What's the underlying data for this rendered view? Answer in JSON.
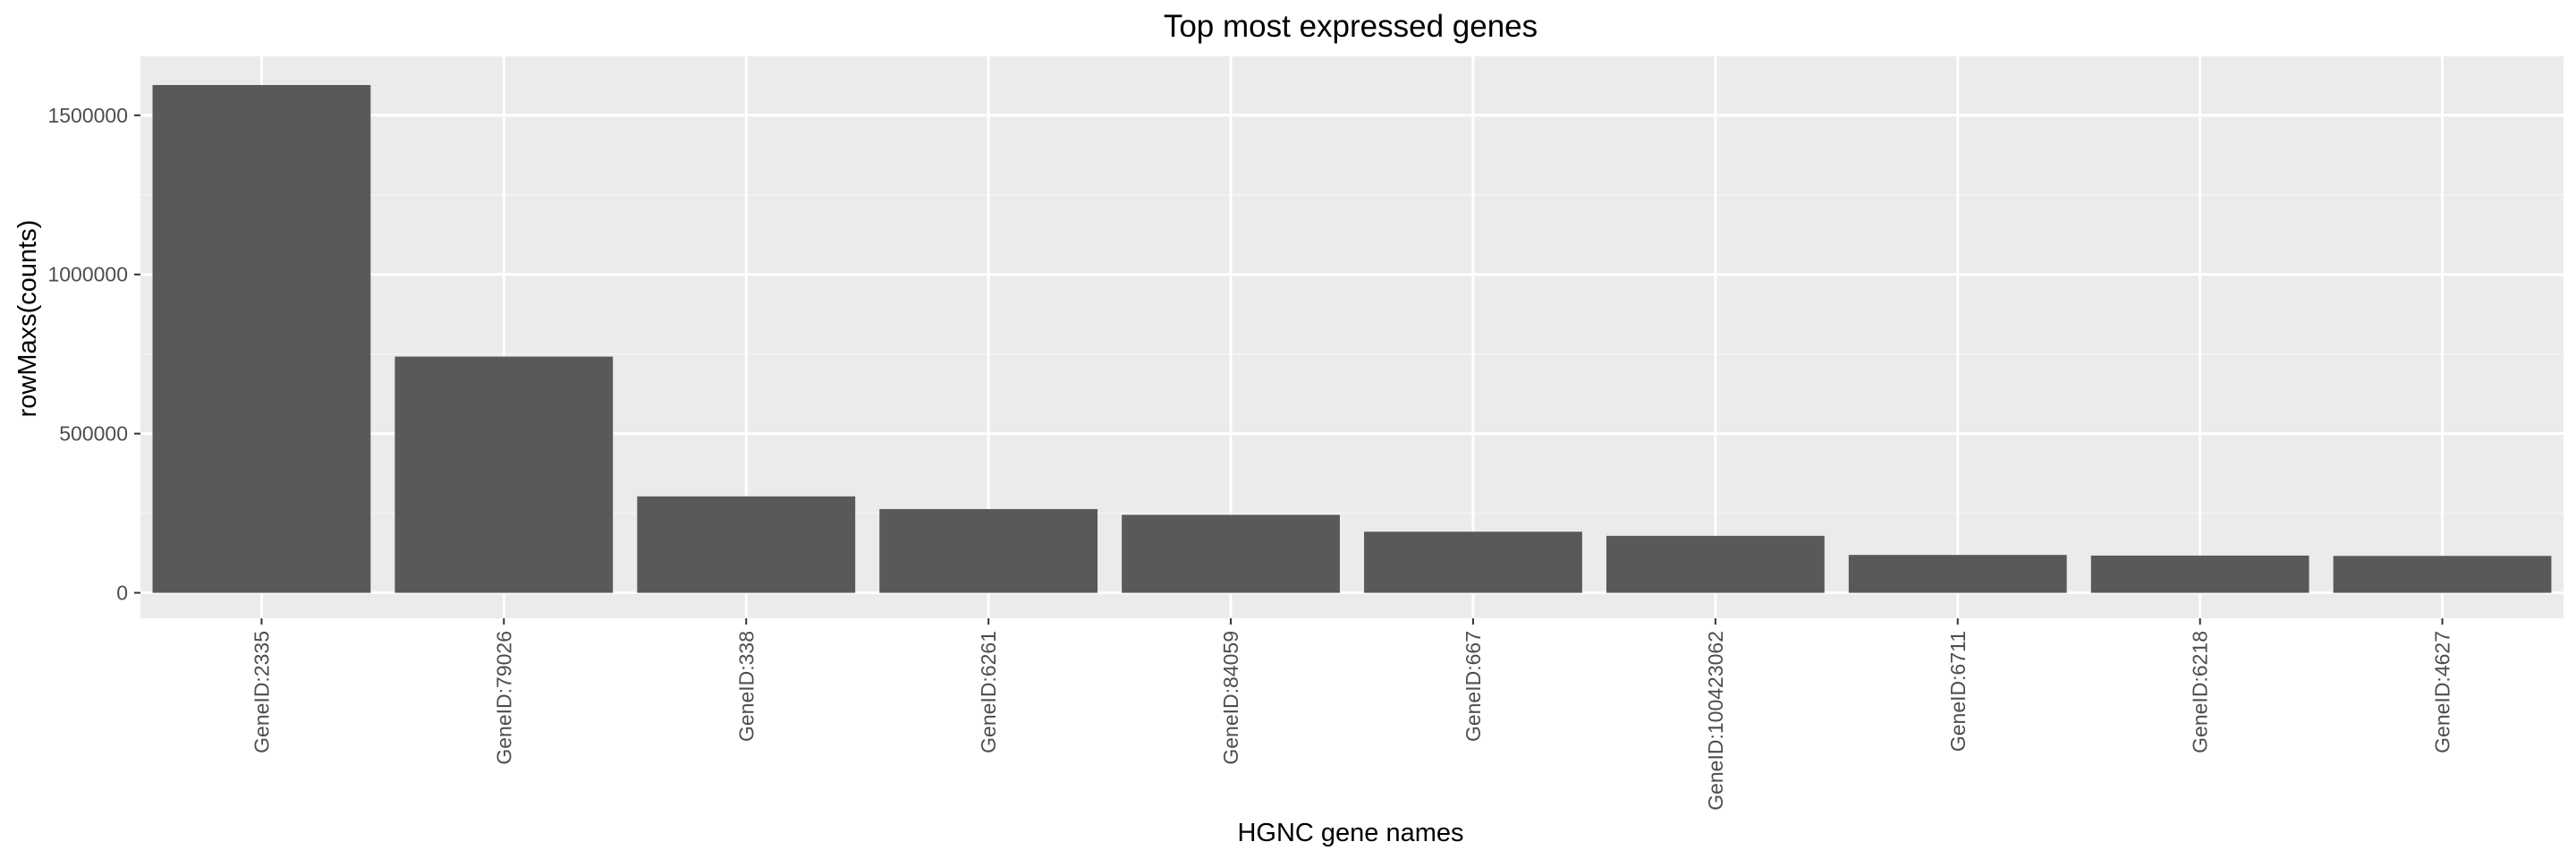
{
  "chart_data": {
    "type": "bar",
    "title": "Top most expressed genes",
    "xlabel": "HGNC gene names",
    "ylabel": "rowMaxs(counts)",
    "categories": [
      "GeneID:2335",
      "GeneID:79026",
      "GeneID:338",
      "GeneID:6261",
      "GeneID:84059",
      "GeneID:667",
      "GeneID:100423062",
      "GeneID:6711",
      "GeneID:6218",
      "GeneID:4627"
    ],
    "values": [
      1595000,
      742000,
      303000,
      263000,
      245000,
      192000,
      179000,
      119000,
      117000,
      116000
    ],
    "ylim": [
      -80000,
      1685000
    ],
    "yticks": [
      0,
      500000,
      1000000,
      1500000
    ],
    "ytick_labels": [
      "0",
      "500000",
      "1000000",
      "1500000"
    ],
    "grid": true,
    "legend": "none",
    "colors": {
      "bar": "#595959",
      "panel": "#ebebeb",
      "grid_major": "#ffffff",
      "grid_minor": "#f5f5f5",
      "tick": "#333333",
      "tick_label": "#4d4d4d"
    }
  }
}
